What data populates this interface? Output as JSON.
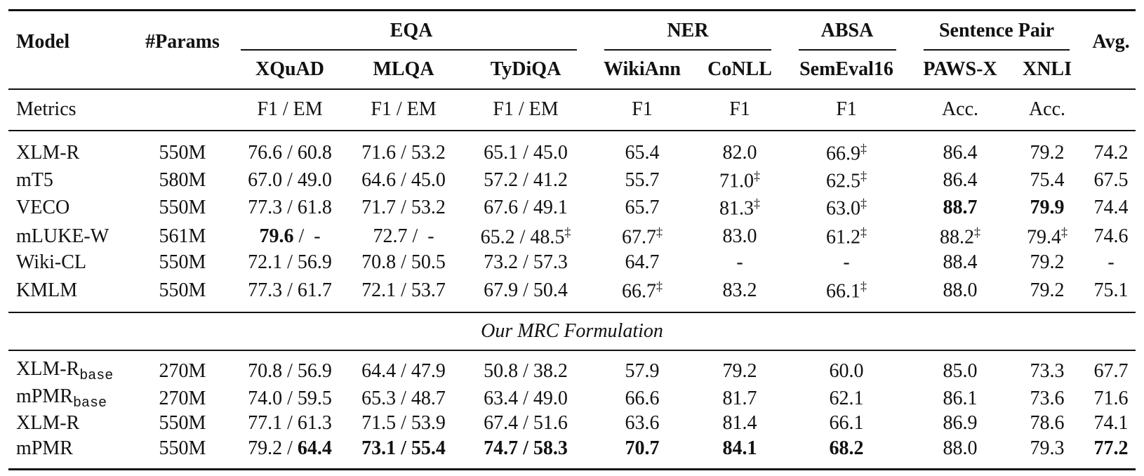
{
  "table": {
    "header": {
      "model": "Model",
      "params": "#Params",
      "groups": [
        "EQA",
        "NER",
        "ABSA",
        "Sentence Pair"
      ],
      "columns": [
        "XQuAD",
        "MLQA",
        "TyDiQA",
        "WikiAnn",
        "CoNLL",
        "SemEval16",
        "PAWS-X",
        "XNLI"
      ],
      "avg": "Avg."
    },
    "metrics": {
      "label": "Metrics",
      "values": [
        "F1 / EM",
        "F1 / EM",
        "F1 / EM",
        "F1",
        "F1",
        "F1",
        "Acc.",
        "Acc."
      ]
    },
    "section": "Our MRC Formulation",
    "rows_top": [
      [
        "XLM-R",
        "550M",
        "76.6 / 60.8",
        "71.6 / 53.2",
        "65.1 / 45.0",
        "65.4",
        "82.0",
        [
          {
            "t": "66.9"
          },
          {
            "t": "‡",
            "s": "sup"
          }
        ],
        "86.4",
        "79.2",
        "74.2"
      ],
      [
        "mT5",
        "580M",
        "67.0 / 49.0",
        "64.6 / 45.0",
        "57.2 / 41.2",
        "55.7",
        [
          {
            "t": "71.0"
          },
          {
            "t": "‡",
            "s": "sup"
          }
        ],
        [
          {
            "t": "62.5"
          },
          {
            "t": "‡",
            "s": "sup"
          }
        ],
        "86.4",
        "75.4",
        "67.5"
      ],
      [
        "VECO",
        "550M",
        "77.3 / 61.8",
        "71.7 / 53.2",
        "67.6 / 49.1",
        "65.7",
        [
          {
            "t": "81.3"
          },
          {
            "t": "‡",
            "s": "sup"
          }
        ],
        [
          {
            "t": "63.0"
          },
          {
            "t": "‡",
            "s": "sup"
          }
        ],
        [
          {
            "t": "88.7",
            "s": "bold"
          }
        ],
        [
          {
            "t": "79.9",
            "s": "bold"
          }
        ],
        "74.4"
      ],
      [
        "mLUKE-W",
        "561M",
        [
          {
            "t": "79.6",
            "s": "bold"
          },
          {
            "t": " /  -"
          }
        ],
        "72.7 /  -",
        [
          {
            "t": "65.2 / 48.5"
          },
          {
            "t": "‡",
            "s": "sup"
          }
        ],
        [
          {
            "t": "67.7"
          },
          {
            "t": "‡",
            "s": "sup"
          }
        ],
        "83.0",
        [
          {
            "t": "61.2"
          },
          {
            "t": "‡",
            "s": "sup"
          }
        ],
        [
          {
            "t": "88.2"
          },
          {
            "t": "‡",
            "s": "sup"
          }
        ],
        [
          {
            "t": "79.4"
          },
          {
            "t": "‡",
            "s": "sup"
          }
        ],
        "74.6"
      ],
      [
        "Wiki-CL",
        "550M",
        "72.1 / 56.9",
        "70.8 / 50.5",
        "73.2 / 57.3",
        "64.7",
        "-",
        "-",
        "88.4",
        "79.2",
        "-"
      ],
      [
        "KMLM",
        "550M",
        "77.3 / 61.7",
        "72.1 / 53.7",
        "67.9 / 50.4",
        [
          {
            "t": "66.7"
          },
          {
            "t": "‡",
            "s": "sup"
          }
        ],
        "83.2",
        [
          {
            "t": "66.1"
          },
          {
            "t": "‡",
            "s": "sup"
          }
        ],
        "88.0",
        "79.2",
        "75.1"
      ]
    ],
    "rows_bottom": [
      [
        [
          {
            "t": "XLM-R"
          },
          {
            "t": "base",
            "s": "sub"
          }
        ],
        "270M",
        "70.8 / 56.9",
        "64.4 / 47.9",
        "50.8 / 38.2",
        "57.9",
        "79.2",
        "60.0",
        "85.0",
        "73.3",
        "67.7"
      ],
      [
        [
          {
            "t": "mPMR"
          },
          {
            "t": "base",
            "s": "sub"
          }
        ],
        "270M",
        "74.0 / 59.5",
        "65.3 / 48.7",
        "63.4 / 49.0",
        "66.6",
        "81.7",
        "62.1",
        "86.1",
        "73.6",
        "71.6"
      ],
      [
        "XLM-R",
        "550M",
        "77.1 / 61.3",
        "71.5 / 53.9",
        "67.4 / 51.6",
        "63.6",
        "81.4",
        "66.1",
        "86.9",
        "78.6",
        "74.1"
      ],
      [
        "mPMR",
        "550M",
        [
          {
            "t": "79.2 / "
          },
          {
            "t": "64.4",
            "s": "bold"
          }
        ],
        [
          {
            "t": "73.1 / 55.4",
            "s": "bold"
          }
        ],
        [
          {
            "t": "74.7 / 58.3",
            "s": "bold"
          }
        ],
        [
          {
            "t": "70.7",
            "s": "bold"
          }
        ],
        [
          {
            "t": "84.1",
            "s": "bold"
          }
        ],
        [
          {
            "t": "68.2",
            "s": "bold"
          }
        ],
        "88.0",
        "79.3",
        [
          {
            "t": "77.2",
            "s": "bold"
          }
        ]
      ]
    ]
  }
}
